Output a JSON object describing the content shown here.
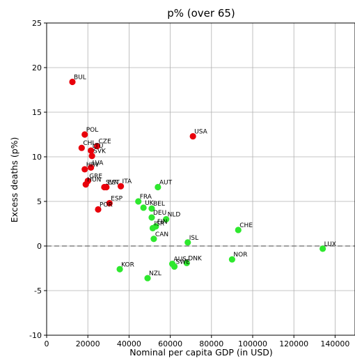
{
  "chart_data": {
    "type": "scatter",
    "title": "p% (over 65)",
    "xlabel": "Nominal per capita GDP (in USD)",
    "ylabel": "Excess deaths (p%)",
    "xlim": [
      0,
      150000
    ],
    "ylim": [
      -10,
      25
    ],
    "xticks": [
      0,
      20000,
      40000,
      60000,
      80000,
      100000,
      120000,
      140000
    ],
    "yticks": [
      -10,
      -5,
      0,
      5,
      10,
      15,
      20,
      25
    ],
    "grid": true,
    "reference_line": {
      "y": 0,
      "style": "dashed",
      "color": "#808080"
    },
    "colors": {
      "red": "#e8000b",
      "green": "#2ee82e"
    },
    "series": [
      {
        "color": "red",
        "points": [
          {
            "label": "BUL",
            "x": 12500,
            "y": 18.4
          },
          {
            "label": "POL",
            "x": 18500,
            "y": 12.5
          },
          {
            "label": "CHL",
            "x": 17000,
            "y": 11.0
          },
          {
            "label": "LTU",
            "x": 21500,
            "y": 10.7
          },
          {
            "label": "CZE",
            "x": 24500,
            "y": 11.2
          },
          {
            "label": "SVK",
            "x": 22000,
            "y": 10.1
          },
          {
            "label": "HRV",
            "x": 18500,
            "y": 8.6
          },
          {
            "label": "LVA",
            "x": 21500,
            "y": 8.8
          },
          {
            "label": "GRE",
            "x": 20000,
            "y": 7.3
          },
          {
            "label": "HUN",
            "x": 19000,
            "y": 6.9
          },
          {
            "label": "EST",
            "x": 29000,
            "y": 6.6
          },
          {
            "label": "ITA",
            "x": 36000,
            "y": 6.7
          },
          {
            "label": "SVN",
            "x": 28000,
            "y": 6.6
          },
          {
            "label": "ESP",
            "x": 30500,
            "y": 4.8
          },
          {
            "label": "POR",
            "x": 25000,
            "y": 4.1
          },
          {
            "label": "USA",
            "x": 71000,
            "y": 12.3
          }
        ]
      },
      {
        "color": "green",
        "points": [
          {
            "label": "AUT",
            "x": 54000,
            "y": 6.6
          },
          {
            "label": "FRA",
            "x": 44500,
            "y": 5.0
          },
          {
            "label": "BEL",
            "x": 51000,
            "y": 4.2
          },
          {
            "label": "UK",
            "x": 47000,
            "y": 4.3
          },
          {
            "label": "NLD",
            "x": 58000,
            "y": 3.0
          },
          {
            "label": "DEU",
            "x": 51000,
            "y": 3.2
          },
          {
            "label": "FIN",
            "x": 53000,
            "y": 2.2
          },
          {
            "label": "ISR",
            "x": 51500,
            "y": 2.0
          },
          {
            "label": "CAN",
            "x": 52000,
            "y": 0.8
          },
          {
            "label": "ISL",
            "x": 68500,
            "y": 0.4
          },
          {
            "label": "CHE",
            "x": 93000,
            "y": 1.8
          },
          {
            "label": "LUX",
            "x": 134000,
            "y": -0.3
          },
          {
            "label": "NOR",
            "x": 90000,
            "y": -1.5
          },
          {
            "label": "DNK",
            "x": 68000,
            "y": -1.9
          },
          {
            "label": "AUS",
            "x": 61000,
            "y": -2.0
          },
          {
            "label": "SWE",
            "x": 62000,
            "y": -2.3
          },
          {
            "label": "KOR",
            "x": 35500,
            "y": -2.6
          },
          {
            "label": "NZL",
            "x": 49000,
            "y": -3.6
          }
        ]
      }
    ]
  }
}
